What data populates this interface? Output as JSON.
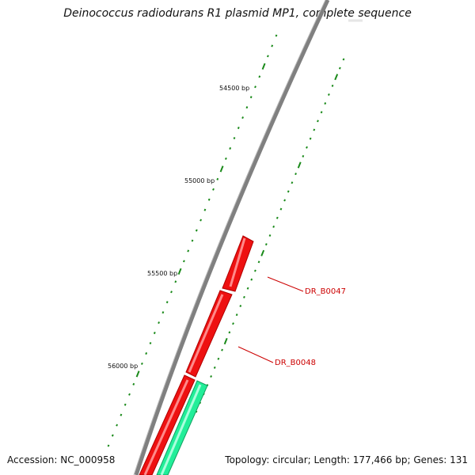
{
  "title": "Deinococcus radiodurans R1 plasmid MP1, complete sequence",
  "footer": {
    "accession": "Accession: NC_000958",
    "stats": "Topology: circular; Length: 177,466 bp; Genes: 131"
  },
  "position_labels": [
    "54500 bp",
    "55000 bp",
    "55500 bp",
    "56000 bp"
  ],
  "genes": [
    {
      "name": "DR_B0047",
      "color": "#ee1111"
    },
    {
      "name": "DR_B0048",
      "color": "#ee1111"
    }
  ],
  "colors": {
    "backbone": "#808080",
    "gene_red": "#ee1111",
    "gene_green": "#22ee99",
    "tick": "#1a8a1a",
    "label_red": "#cc0000"
  }
}
